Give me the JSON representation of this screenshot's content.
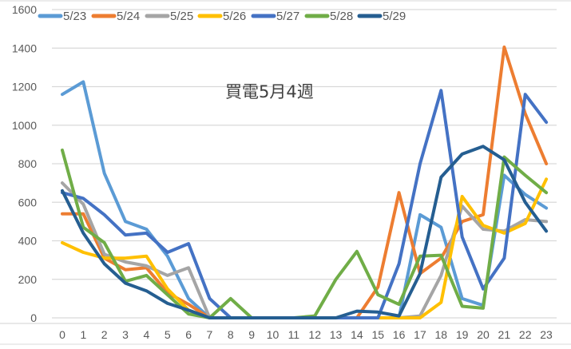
{
  "chart_data": {
    "type": "line",
    "title": "買電5月4週",
    "xlabel": "",
    "ylabel": "",
    "ylim": [
      0,
      1600
    ],
    "yticks": [
      0,
      200,
      400,
      600,
      800,
      1000,
      1200,
      1400,
      1600
    ],
    "grid": true,
    "legend_position": "top",
    "x": [
      0,
      1,
      2,
      3,
      4,
      5,
      6,
      7,
      8,
      9,
      10,
      11,
      12,
      13,
      14,
      15,
      16,
      17,
      18,
      19,
      20,
      21,
      22,
      23
    ],
    "series": [
      {
        "name": "5/23",
        "color": "#5B9BD5",
        "values": [
          1160,
          1225,
          750,
          500,
          460,
          320,
          100,
          0,
          0,
          0,
          0,
          0,
          0,
          0,
          0,
          0,
          0,
          535,
          470,
          100,
          65,
          740,
          640,
          570
        ]
      },
      {
        "name": "5/24",
        "color": "#ED7D31",
        "values": [
          540,
          540,
          310,
          250,
          260,
          130,
          70,
          0,
          0,
          0,
          0,
          0,
          0,
          0,
          0,
          160,
          650,
          230,
          310,
          500,
          535,
          1405,
          1060,
          800
        ]
      },
      {
        "name": "5/25",
        "color": "#A5A5A5",
        "values": [
          700,
          590,
          330,
          290,
          270,
          220,
          260,
          0,
          0,
          0,
          0,
          0,
          0,
          0,
          0,
          0,
          0,
          10,
          220,
          580,
          460,
          450,
          510,
          500
        ]
      },
      {
        "name": "5/26",
        "color": "#FFC000",
        "values": [
          390,
          340,
          310,
          310,
          320,
          150,
          40,
          0,
          0,
          0,
          0,
          0,
          0,
          0,
          0,
          0,
          0,
          0,
          80,
          630,
          480,
          440,
          490,
          720
        ]
      },
      {
        "name": "5/27",
        "color": "#4472C4",
        "values": [
          650,
          620,
          535,
          430,
          440,
          340,
          385,
          100,
          0,
          0,
          0,
          0,
          0,
          0,
          0,
          0,
          280,
          800,
          1180,
          420,
          150,
          310,
          1160,
          1015
        ]
      },
      {
        "name": "5/28",
        "color": "#70AD47",
        "values": [
          870,
          470,
          390,
          190,
          220,
          120,
          20,
          0,
          100,
          0,
          0,
          0,
          10,
          200,
          345,
          120,
          70,
          320,
          325,
          60,
          50,
          835,
          740,
          650
        ]
      },
      {
        "name": "5/29",
        "color": "#255E91",
        "values": [
          660,
          440,
          280,
          180,
          140,
          75,
          40,
          0,
          0,
          0,
          0,
          0,
          0,
          0,
          35,
          30,
          10,
          230,
          730,
          850,
          890,
          820,
          600,
          450
        ]
      }
    ]
  },
  "legend": {
    "items": [
      "5/23",
      "5/24",
      "5/25",
      "5/26",
      "5/27",
      "5/28",
      "5/29"
    ]
  },
  "axes": {
    "y_labels": [
      "0",
      "200",
      "400",
      "600",
      "800",
      "1000",
      "1200",
      "1400",
      "1600"
    ],
    "x_labels": [
      "0",
      "1",
      "2",
      "3",
      "4",
      "5",
      "6",
      "7",
      "8",
      "9",
      "10",
      "11",
      "12",
      "13",
      "14",
      "15",
      "16",
      "17",
      "18",
      "19",
      "20",
      "21",
      "22",
      "23"
    ]
  }
}
